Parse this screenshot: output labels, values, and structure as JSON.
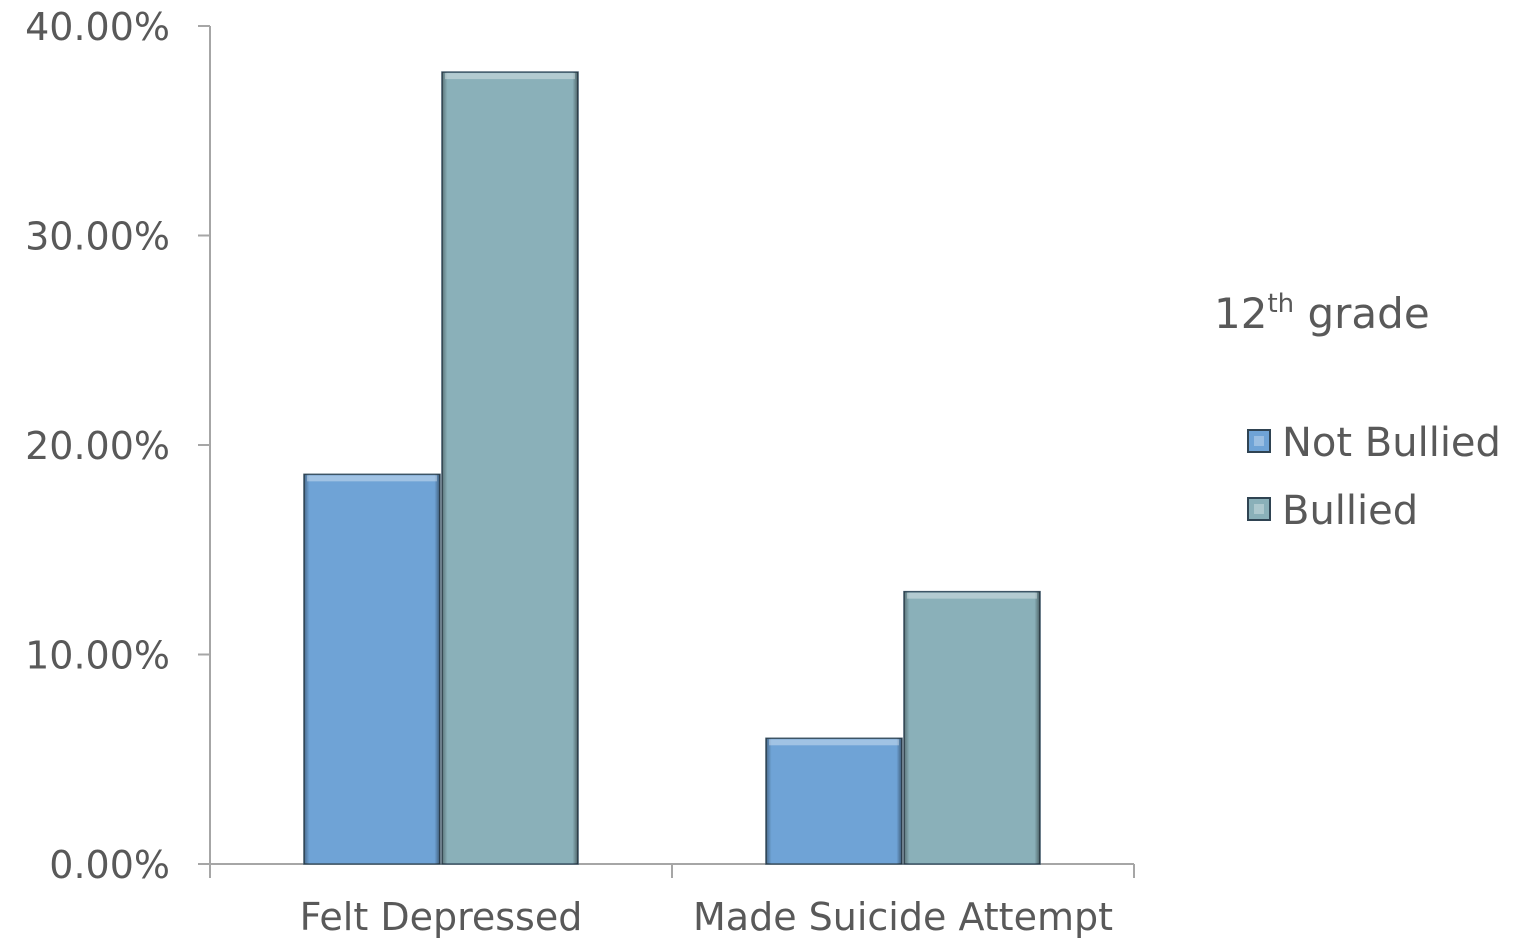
{
  "chart_data": {
    "type": "bar",
    "categories": [
      "Felt Depressed",
      "Made Suicide Attempt"
    ],
    "series": [
      {
        "name": "Not Bullied",
        "values": [
          18.6,
          6.0
        ],
        "color": "#6fa3d6"
      },
      {
        "name": "Bullied",
        "values": [
          37.8,
          13.0
        ],
        "color": "#8ab0b9"
      }
    ],
    "title": "",
    "xlabel": "",
    "ylabel": "",
    "ylim": [
      0,
      40
    ],
    "yticks": [
      0,
      10,
      20,
      30,
      40
    ],
    "ytick_labels": [
      "0.00%",
      "10.00%",
      "20.00%",
      "30.00%",
      "40.00%"
    ],
    "legend": {
      "title_main": "12",
      "title_sup": "th",
      "title_rest": " grade",
      "position": "right"
    },
    "grid": false,
    "colors": {
      "axis": "#a6a6a6",
      "text": "#595959"
    }
  }
}
